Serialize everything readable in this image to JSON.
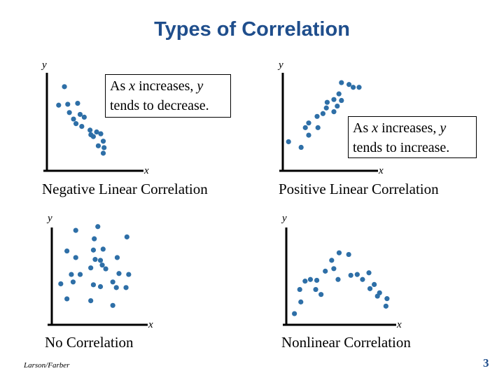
{
  "title": "Types of Correlation",
  "colors": {
    "title": "#1f4e8c",
    "dot": "#2e6fa7",
    "axis": "#000000"
  },
  "notes": {
    "negative": {
      "line1_pre": "As ",
      "line1_var1": "x",
      "line1_mid": " increases, ",
      "line1_var2": "y",
      "line2": "tends to decrease."
    },
    "positive": {
      "line1_pre": "As ",
      "line1_var1": "x",
      "line1_mid": " increases, ",
      "line1_var2": "y",
      "line2": "tends to increase."
    }
  },
  "chart_data": [
    {
      "type": "scatter",
      "id": "negative",
      "caption": "Negative Linear Correlation",
      "xlabel": "x",
      "ylabel": "y",
      "xlim": [
        0,
        10
      ],
      "ylim": [
        0,
        10
      ],
      "points": [
        [
          1.7,
          8.8
        ],
        [
          1.0,
          6.8
        ],
        [
          2.1,
          6.9
        ],
        [
          3.3,
          7.0
        ],
        [
          2.3,
          6.0
        ],
        [
          2.8,
          5.3
        ],
        [
          3.6,
          5.8
        ],
        [
          4.1,
          5.5
        ],
        [
          3.1,
          4.8
        ],
        [
          3.8,
          4.5
        ],
        [
          4.8,
          4.1
        ],
        [
          5.6,
          3.9
        ],
        [
          4.9,
          3.6
        ],
        [
          6.1,
          3.7
        ],
        [
          5.2,
          3.4
        ],
        [
          6.4,
          2.9
        ],
        [
          5.8,
          2.4
        ],
        [
          6.5,
          2.2
        ],
        [
          6.4,
          1.6
        ]
      ]
    },
    {
      "type": "scatter",
      "id": "positive",
      "caption": "Positive Linear Correlation",
      "xlabel": "x",
      "ylabel": "y",
      "xlim": [
        0,
        10
      ],
      "ylim": [
        0,
        10
      ],
      "points": [
        [
          0.6,
          2.8
        ],
        [
          2.1,
          2.2
        ],
        [
          3.0,
          3.5
        ],
        [
          2.6,
          4.3
        ],
        [
          4.1,
          4.3
        ],
        [
          3.0,
          4.8
        ],
        [
          4.0,
          5.5
        ],
        [
          4.7,
          5.8
        ],
        [
          6.0,
          6.0
        ],
        [
          5.1,
          6.4
        ],
        [
          6.4,
          6.6
        ],
        [
          5.2,
          7.0
        ],
        [
          6.0,
          7.3
        ],
        [
          6.9,
          7.2
        ],
        [
          6.6,
          7.9
        ],
        [
          7.8,
          8.9
        ],
        [
          6.9,
          9.1
        ],
        [
          8.3,
          8.6
        ],
        [
          9.0,
          8.6
        ]
      ]
    },
    {
      "type": "scatter",
      "id": "none",
      "caption": "No Correlation",
      "xlabel": "x",
      "ylabel": "y",
      "xlim": [
        0,
        10
      ],
      "ylim": [
        0,
        10
      ],
      "points": [
        [
          4.9,
          8.9
        ],
        [
          2.4,
          8.5
        ],
        [
          8.2,
          7.8
        ],
        [
          4.5,
          7.6
        ],
        [
          1.4,
          6.3
        ],
        [
          5.5,
          6.5
        ],
        [
          4.4,
          6.4
        ],
        [
          2.4,
          5.6
        ],
        [
          7.1,
          5.6
        ],
        [
          4.6,
          5.4
        ],
        [
          5.2,
          5.3
        ],
        [
          5.4,
          4.8
        ],
        [
          4.1,
          4.5
        ],
        [
          5.8,
          4.4
        ],
        [
          1.9,
          3.8
        ],
        [
          2.9,
          3.8
        ],
        [
          7.3,
          3.9
        ],
        [
          8.4,
          3.8
        ],
        [
          0.7,
          2.8
        ],
        [
          2.1,
          3.0
        ],
        [
          4.4,
          2.7
        ],
        [
          6.6,
          3.0
        ],
        [
          5.2,
          2.5
        ],
        [
          7.0,
          2.4
        ],
        [
          8.1,
          2.4
        ],
        [
          1.4,
          1.2
        ],
        [
          4.1,
          1.0
        ],
        [
          6.6,
          0.5
        ]
      ]
    },
    {
      "type": "scatter",
      "id": "nonlinear",
      "caption": "Nonlinear Correlation",
      "xlabel": "x",
      "ylabel": "y",
      "xlim": [
        0,
        10
      ],
      "ylim": [
        0,
        10
      ],
      "points": [
        [
          0.7,
          0.5
        ],
        [
          1.3,
          1.9
        ],
        [
          1.2,
          3.4
        ],
        [
          1.7,
          4.4
        ],
        [
          2.2,
          4.6
        ],
        [
          2.7,
          3.4
        ],
        [
          3.2,
          2.8
        ],
        [
          2.8,
          4.5
        ],
        [
          3.6,
          5.6
        ],
        [
          4.4,
          5.9
        ],
        [
          4.8,
          4.6
        ],
        [
          4.2,
          6.9
        ],
        [
          4.9,
          7.8
        ],
        [
          5.8,
          7.6
        ],
        [
          6.6,
          5.2
        ],
        [
          6.0,
          5.1
        ],
        [
          7.1,
          4.6
        ],
        [
          7.8,
          3.5
        ],
        [
          8.7,
          3.0
        ],
        [
          7.7,
          5.4
        ],
        [
          8.5,
          2.6
        ],
        [
          9.3,
          1.4
        ],
        [
          9.4,
          2.3
        ],
        [
          8.2,
          4.0
        ]
      ]
    }
  ],
  "footer": {
    "author": "Larson/Farber",
    "page": "3"
  }
}
